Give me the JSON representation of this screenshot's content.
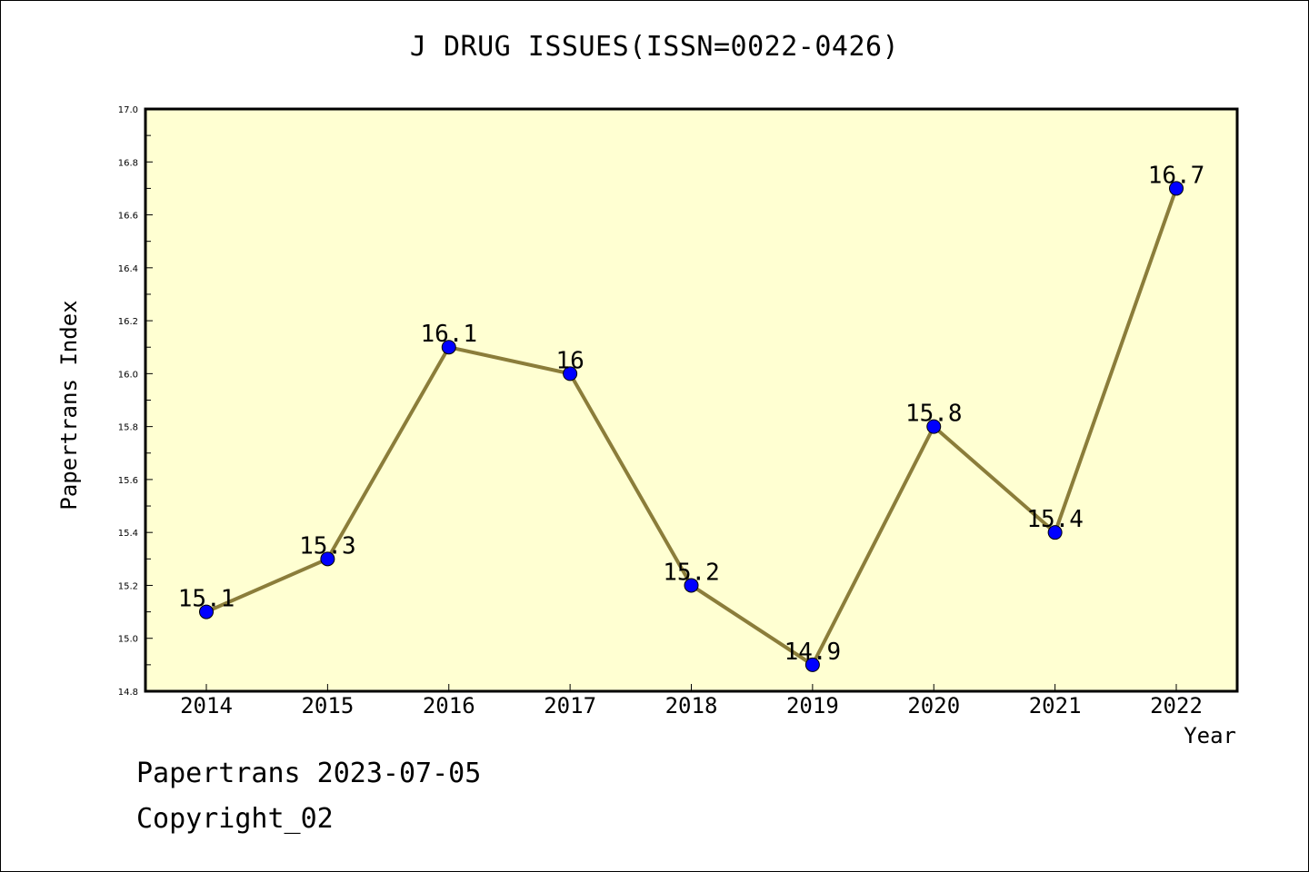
{
  "header": {
    "title": "J DRUG ISSUES(ISSN=0022-0426)"
  },
  "footer": {
    "line1": "Papertrans 2023-07-05",
    "line2": "Copyright_02"
  },
  "colors": {
    "plot_background": "#ffffd2",
    "line": "#8b7d3a",
    "marker": "#0000ff"
  },
  "chart_data": {
    "type": "line",
    "title": "J DRUG ISSUES(ISSN=0022-0426)",
    "xlabel": "Year",
    "ylabel": "Papertrans Index",
    "categories": [
      "2014",
      "2015",
      "2016",
      "2017",
      "2018",
      "2019",
      "2020",
      "2021",
      "2022"
    ],
    "series": [
      {
        "values": [
          15.1,
          15.3,
          16.1,
          16.0,
          15.2,
          14.9,
          15.8,
          15.4,
          16.7
        ],
        "labels": [
          "15.1",
          "15.3",
          "16.1",
          "16",
          "15.2",
          "14.9",
          "15.8",
          "15.4",
          "16.7"
        ]
      }
    ],
    "ylim": [
      14.8,
      17.0
    ],
    "yticks": [
      "14.8",
      "15.0",
      "15.2",
      "15.4",
      "15.6",
      "15.8",
      "16.0",
      "16.2",
      "16.4",
      "16.6",
      "16.8",
      "17.0"
    ],
    "grid": false,
    "legend": "none"
  }
}
